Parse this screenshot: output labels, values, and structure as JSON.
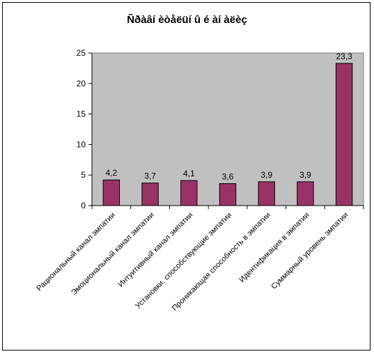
{
  "chart_data": {
    "type": "bar",
    "title": "Ñðàâí èòåëüí û é àí àëèç",
    "categories": [
      "Рациональный канал эмпатии",
      "Эмоциональный канал эмпатии",
      "Интуитивный канал эмпатии",
      "Установки, способствующие эмпатии",
      "Проникающая способность в эмпатии",
      "Идентификация в эмпатии",
      "Суммарный уровень эмпатии"
    ],
    "values": [
      4.2,
      3.7,
      4.1,
      3.6,
      3.9,
      3.9,
      23.3
    ],
    "data_labels": [
      "4,2",
      "3,7",
      "4,1",
      "3,6",
      "3,9",
      "3,9",
      "23,3"
    ],
    "y_ticks": [
      "0",
      "5",
      "10",
      "15",
      "20",
      "25"
    ],
    "ylim": [
      0,
      25
    ],
    "grid": false,
    "legend": "none",
    "colors": {
      "bar": "#993366",
      "plot_area": "#c0c0c0",
      "border": "#000000"
    }
  }
}
